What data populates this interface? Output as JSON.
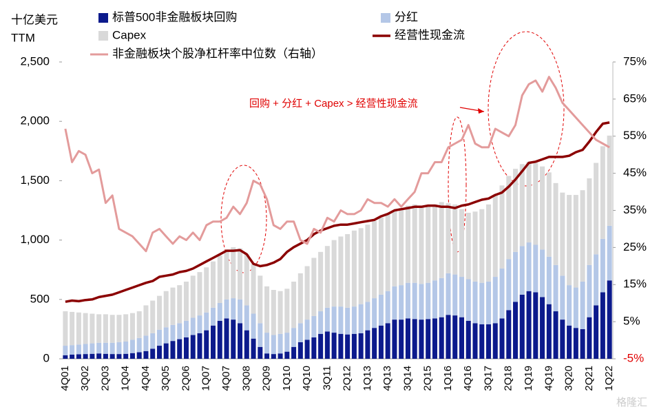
{
  "chart_data": {
    "type": "combo",
    "ylabel": [
      "十亿美元",
      "TTM"
    ],
    "annotation": "回购 + 分红 + Capex > 经营性现金流",
    "annotation_color": "#e00000",
    "watermark": "格隆汇",
    "categories": [
      "4Q01",
      null,
      null,
      "3Q02",
      null,
      null,
      "2Q03",
      null,
      null,
      "1Q04",
      null,
      null,
      "4Q04",
      null,
      null,
      "3Q05",
      null,
      null,
      "2Q06",
      null,
      null,
      "1Q07",
      null,
      null,
      "4Q07",
      null,
      null,
      "3Q08",
      null,
      null,
      "2Q09",
      null,
      null,
      "1Q10",
      null,
      null,
      "4Q10",
      null,
      null,
      "3Q11",
      null,
      null,
      "2Q12",
      null,
      null,
      "1Q13",
      null,
      null,
      "4Q13",
      null,
      null,
      "3Q14",
      null,
      null,
      "2Q15",
      null,
      null,
      "1Q16",
      null,
      null,
      "4Q16",
      null,
      null,
      "3Q17",
      null,
      null,
      "2Q18",
      null,
      null,
      "1Q19",
      null,
      null,
      "4Q19",
      null,
      null,
      "3Q20",
      null,
      null,
      "2Q21",
      null,
      null,
      "1Q22"
    ],
    "series": [
      {
        "name": "标普500非金融板块回购",
        "type": "bar",
        "color": "#0c1a8c",
        "values": [
          30,
          35,
          38,
          40,
          42,
          45,
          42,
          40,
          40,
          42,
          48,
          55,
          65,
          85,
          110,
          130,
          150,
          165,
          180,
          200,
          215,
          240,
          280,
          320,
          340,
          330,
          300,
          240,
          170,
          100,
          45,
          40,
          45,
          60,
          100,
          140,
          160,
          180,
          210,
          230,
          220,
          210,
          205,
          210,
          215,
          240,
          260,
          280,
          300,
          330,
          330,
          340,
          335,
          330,
          335,
          340,
          350,
          370,
          365,
          350,
          320,
          300,
          290,
          290,
          300,
          340,
          410,
          480,
          540,
          570,
          560,
          520,
          460,
          400,
          330,
          280,
          260,
          250,
          350,
          450,
          560,
          660
        ]
      },
      {
        "name": "分红",
        "type": "bar",
        "color": "#b4c7e7",
        "values": [
          80,
          80,
          82,
          85,
          88,
          90,
          93,
          95,
          100,
          103,
          112,
          120,
          130,
          130,
          135,
          135,
          135,
          135,
          140,
          145,
          150,
          150,
          150,
          150,
          160,
          180,
          200,
          210,
          210,
          200,
          175,
          160,
          165,
          160,
          160,
          160,
          170,
          180,
          190,
          200,
          220,
          230,
          225,
          230,
          245,
          240,
          250,
          260,
          270,
          280,
          290,
          300,
          305,
          300,
          305,
          320,
          330,
          350,
          345,
          340,
          350,
          350,
          350,
          360,
          390,
          420,
          430,
          420,
          410,
          410,
          400,
          400,
          400,
          390,
          370,
          340,
          340,
          400,
          440,
          430,
          450,
          460
        ]
      },
      {
        "name": "Capex",
        "type": "bar",
        "color": "#d9d9d9",
        "values": [
          290,
          280,
          270,
          260,
          250,
          240,
          240,
          235,
          230,
          230,
          225,
          225,
          255,
          275,
          285,
          305,
          315,
          320,
          330,
          355,
          365,
          380,
          390,
          400,
          410,
          430,
          430,
          430,
          420,
          400,
          390,
          380,
          360,
          370,
          390,
          420,
          450,
          490,
          500,
          520,
          560,
          590,
          620,
          640,
          640,
          650,
          650,
          650,
          650,
          640,
          650,
          650,
          660,
          660,
          640,
          640,
          640,
          590,
          590,
          570,
          560,
          590,
          620,
          650,
          690,
          700,
          700,
          700,
          690,
          680,
          690,
          700,
          710,
          690,
          700,
          760,
          780,
          770,
          730,
          770,
          780,
          760
        ]
      },
      {
        "name": "经营性现金流",
        "type": "line",
        "color": "#8b0000",
        "width": 3.5,
        "values": [
          480,
          490,
          485,
          495,
          500,
          520,
          530,
          540,
          560,
          580,
          600,
          620,
          640,
          655,
          690,
          700,
          710,
          730,
          740,
          760,
          790,
          820,
          850,
          880,
          910,
          910,
          915,
          880,
          800,
          780,
          790,
          810,
          840,
          900,
          940,
          970,
          1000,
          1050,
          1080,
          1100,
          1120,
          1130,
          1130,
          1140,
          1150,
          1160,
          1170,
          1200,
          1220,
          1250,
          1260,
          1270,
          1280,
          1280,
          1290,
          1290,
          1280,
          1280,
          1270,
          1290,
          1300,
          1320,
          1340,
          1350,
          1380,
          1400,
          1450,
          1510,
          1580,
          1650,
          1660,
          1680,
          1700,
          1700,
          1700,
          1710,
          1740,
          1760,
          1830,
          1910,
          1980,
          1990
        ]
      },
      {
        "name": "非金融板块个股净杠杆率中位数（右轴）",
        "type": "line",
        "axis": "y2",
        "color": "#e39b9b",
        "width": 3,
        "values": [
          57,
          48,
          51,
          50,
          45,
          46,
          37,
          39,
          30,
          29,
          28,
          26,
          24,
          29,
          30,
          28,
          26,
          28,
          27,
          29,
          27,
          31,
          32,
          32,
          33,
          36,
          34,
          37,
          43,
          42,
          38,
          31,
          30,
          32,
          32,
          27,
          26,
          30,
          29,
          33,
          32,
          35,
          34,
          34,
          35,
          38,
          37,
          37,
          36,
          38,
          36,
          38,
          40,
          45,
          45,
          48,
          48,
          52,
          53,
          54,
          58,
          53,
          52,
          52,
          57,
          56,
          55,
          58,
          66,
          69,
          70,
          67,
          71,
          68,
          64,
          62,
          60,
          58,
          56,
          54,
          53,
          52
        ]
      }
    ],
    "ylim": [
      0,
      2500
    ],
    "yticks": [
      0,
      500,
      {
        "value": 1000,
        "label": "1,000"
      },
      {
        "value": 1500,
        "label": "1,500"
      },
      {
        "value": 2000,
        "label": "2,000"
      },
      {
        "value": 2500,
        "label": "2,500"
      }
    ],
    "y2lim": [
      -5,
      75
    ],
    "y2ticks": [
      {
        "value": 75,
        "label": "75%"
      },
      {
        "value": 65,
        "label": "65%"
      },
      {
        "value": 55,
        "label": "55%"
      },
      {
        "value": 45,
        "label": "45%"
      },
      {
        "value": 35,
        "label": "35%"
      },
      {
        "value": 25,
        "label": "25%"
      },
      {
        "value": 15,
        "label": "15%"
      },
      {
        "value": 5,
        "label": "5%"
      },
      {
        "value": -5,
        "label": "-5%"
      }
    ],
    "negative_tick_color": "#e00000"
  }
}
